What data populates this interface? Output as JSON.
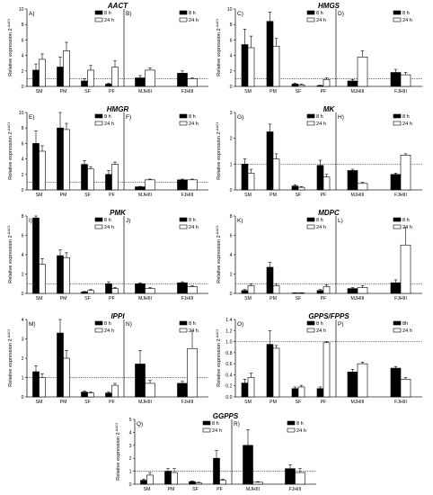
{
  "legend_labels": [
    "8 h",
    "24 h"
  ],
  "legend_labels_alt": [
    "8h",
    "24 h"
  ],
  "colors": {
    "h8": "#000000",
    "h24": "#ffffff",
    "axis": "#222222",
    "ref_line": "#333333"
  },
  "chart_data": [
    {
      "title": "AACT",
      "type": "bar",
      "ylabel": "Relative expression 2^-ΔΔCt",
      "ylim": [
        0,
        10
      ],
      "yticks": [
        0,
        2,
        4,
        6,
        8,
        10
      ],
      "reference_line": 1,
      "legend": "top-right",
      "left": {
        "label": "A)",
        "categories": [
          "SM",
          "PM",
          "SF",
          "PF"
        ],
        "values_8h": [
          2.1,
          2.5,
          0.7,
          0.3
        ],
        "err_8h": [
          0.8,
          1.3,
          0.3,
          0.1
        ],
        "values_24h": [
          3.5,
          4.6,
          2.1,
          2.5
        ],
        "err_24h": [
          0.7,
          1.1,
          0.6,
          0.8
        ]
      },
      "right": {
        "label": "B)",
        "categories": [
          "MJHIII",
          "FJHIII"
        ],
        "values_8h": [
          1.1,
          1.7
        ],
        "err_8h": [
          0.3,
          0.3
        ],
        "values_24h": [
          2.1,
          1.0
        ],
        "err_24h": [
          0.3,
          0.1
        ]
      }
    },
    {
      "title": "HMGS",
      "type": "bar",
      "ylabel": "Relative expression 2^-ΔΔCt",
      "ylim": [
        0,
        10
      ],
      "yticks": [
        0,
        2,
        4,
        6,
        8,
        10
      ],
      "reference_line": 1,
      "legend": "top-right",
      "left": {
        "label": "C)",
        "categories": [
          "SM",
          "PM",
          "SF",
          "PF"
        ],
        "values_8h": [
          5.4,
          8.4,
          0.3,
          0.1
        ],
        "err_8h": [
          2.0,
          1.2,
          0.1,
          0.05
        ],
        "values_24h": [
          5.0,
          5.2,
          0.2,
          0.9
        ],
        "err_24h": [
          1.5,
          1.0,
          0.1,
          0.2
        ]
      },
      "right": {
        "label": "D)",
        "categories": [
          "MJHIII",
          "FJHIII"
        ],
        "values_8h": [
          0.7,
          1.8
        ],
        "err_8h": [
          0.2,
          0.4
        ],
        "values_24h": [
          3.8,
          1.5
        ],
        "err_24h": [
          0.8,
          0.3
        ]
      }
    },
    {
      "title": "HMGR",
      "type": "bar",
      "ylabel": "Relative expression 2^-ΔΔCt",
      "ylim": [
        0,
        10
      ],
      "yticks": [
        0,
        2,
        4,
        6,
        8,
        10
      ],
      "reference_line": 1,
      "legend": "top-right",
      "left": {
        "label": "E)",
        "categories": [
          "SM",
          "PM",
          "SF",
          "PF"
        ],
        "values_8h": [
          6.0,
          8.0,
          3.3,
          2.0
        ],
        "err_8h": [
          1.6,
          2.1,
          0.5,
          0.5
        ],
        "values_24h": [
          5.0,
          7.8,
          2.7,
          3.3
        ],
        "err_24h": [
          0.7,
          0.8,
          0.3,
          0.3
        ]
      },
      "right": {
        "label": "F)",
        "categories": [
          "MJHIII",
          "FJHIII"
        ],
        "values_8h": [
          0.4,
          1.3
        ],
        "err_8h": [
          0.05,
          0.1
        ],
        "values_24h": [
          1.3,
          1.3
        ],
        "err_24h": [
          0.1,
          0.1
        ]
      }
    },
    {
      "title": "MK",
      "type": "bar",
      "ylabel": "Relative expression 2^-ΔΔCt",
      "ylim": [
        0,
        3
      ],
      "yticks": [
        0,
        1,
        2,
        3
      ],
      "reference_line": 1,
      "legend": "top-right",
      "left": {
        "label": "G)",
        "categories": [
          "SM",
          "PM",
          "SF",
          "PF"
        ],
        "values_8h": [
          1.0,
          2.25,
          0.15,
          0.95
        ],
        "err_8h": [
          0.2,
          0.3,
          0.05,
          0.2
        ],
        "values_24h": [
          0.65,
          1.2,
          0.1,
          0.5
        ],
        "err_24h": [
          0.15,
          0.2,
          0.03,
          0.1
        ]
      },
      "right": {
        "label": "H)",
        "categories": [
          "MJHIII",
          "FJHIII"
        ],
        "values_8h": [
          0.75,
          0.6
        ],
        "err_8h": [
          0.05,
          0.05
        ],
        "values_24h": [
          0.25,
          1.35
        ],
        "err_24h": [
          0.05,
          0.05
        ]
      }
    },
    {
      "title": "PMK",
      "type": "bar",
      "ylabel": "Relative expression 2^-ΔΔCt",
      "ylim": [
        0,
        8
      ],
      "yticks": [
        0,
        2,
        4,
        6,
        8
      ],
      "reference_line": 1,
      "legend": "top-right",
      "left": {
        "label": "I)",
        "categories": [
          "SM",
          "PM",
          "SF",
          "PF"
        ],
        "values_8h": [
          7.8,
          3.9,
          0.15,
          1.0
        ],
        "err_8h": [
          0.3,
          0.6,
          0.05,
          0.2
        ],
        "values_24h": [
          3.0,
          3.7,
          0.3,
          0.5
        ],
        "err_24h": [
          0.6,
          0.5,
          0.1,
          0.1
        ]
      },
      "right": {
        "label": "J)",
        "categories": [
          "MJHIII",
          "FJHIII"
        ],
        "values_8h": [
          1.0,
          1.1
        ],
        "err_8h": [
          0.1,
          0.1
        ],
        "values_24h": [
          0.5,
          0.7
        ],
        "err_24h": [
          0.1,
          0.1
        ]
      }
    },
    {
      "title": "MDPC",
      "type": "bar",
      "ylabel": "Relative expression 2^-ΔΔCt",
      "ylim": [
        0,
        8
      ],
      "yticks": [
        0,
        2,
        4,
        6,
        8
      ],
      "reference_line": 1,
      "legend": "top-right",
      "left": {
        "label": "K)",
        "categories": [
          "SM",
          "PM",
          "SF",
          "PF"
        ],
        "values_8h": [
          0.3,
          2.7,
          0.05,
          0.3
        ],
        "err_8h": [
          0.1,
          0.5,
          0.02,
          0.1
        ],
        "values_24h": [
          0.8,
          0.8,
          0.05,
          0.7
        ],
        "err_24h": [
          0.2,
          0.2,
          0.02,
          0.2
        ]
      },
      "right": {
        "label": "L)",
        "categories": [
          "MJHIII",
          "FJHIII"
        ],
        "values_8h": [
          0.5,
          1.1
        ],
        "err_8h": [
          0.1,
          0.3
        ],
        "values_24h": [
          0.6,
          5.0
        ],
        "err_24h": [
          0.2,
          1.8
        ]
      }
    },
    {
      "title": "IPPI",
      "type": "bar",
      "ylabel": "Relative expression 2^-ΔΔCt",
      "ylim": [
        0,
        4
      ],
      "yticks": [
        0,
        1,
        2,
        3,
        4
      ],
      "reference_line": 1,
      "legend": "top-right",
      "left": {
        "label": "M)",
        "categories": [
          "SM",
          "PM",
          "SF",
          "PF"
        ],
        "values_8h": [
          1.3,
          3.3,
          0.25,
          0.2
        ],
        "err_8h": [
          0.3,
          0.7,
          0.05,
          0.05
        ],
        "values_24h": [
          1.0,
          2.0,
          0.2,
          0.6
        ],
        "err_24h": [
          0.2,
          0.4,
          0.05,
          0.1
        ]
      },
      "right": {
        "label": "N)",
        "categories": [
          "MJHIII",
          "FJHIII"
        ],
        "values_8h": [
          1.7,
          0.7
        ],
        "err_8h": [
          0.7,
          0.1
        ],
        "values_24h": [
          0.7,
          2.5
        ],
        "err_24h": [
          0.15,
          0.9
        ]
      }
    },
    {
      "title": "GPPS/FPPS",
      "type": "bar",
      "ylabel": "Relative expression 2^-ΔΔCt",
      "ylim": [
        0,
        1.4
      ],
      "yticks": [
        0.0,
        0.2,
        0.4,
        0.6,
        0.8,
        1.0,
        1.2,
        1.4
      ],
      "reference_line": 1,
      "legend": "top-right",
      "left": {
        "label": "O)",
        "categories": [
          "SM",
          "PM",
          "SF",
          "PF"
        ],
        "values_8h": [
          0.25,
          0.95,
          0.15,
          0.15
        ],
        "err_8h": [
          0.07,
          0.25,
          0.03,
          0.03
        ],
        "values_24h": [
          0.35,
          0.88,
          0.18,
          0.98
        ],
        "err_24h": [
          0.08,
          0.05,
          0.03,
          0.02
        ]
      },
      "right": {
        "label": "P)",
        "categories": [
          "MJHIII",
          "FJHIII"
        ],
        "values_8h": [
          0.45,
          0.52
        ],
        "err_8h": [
          0.05,
          0.03
        ],
        "values_24h": [
          0.6,
          0.32
        ],
        "err_24h": [
          0.03,
          0.03
        ]
      }
    },
    {
      "title": "GGPPS",
      "type": "bar",
      "ylabel": "Relative expression 2^-ΔΔCt",
      "ylim": [
        0,
        5
      ],
      "yticks": [
        0,
        1,
        2,
        3,
        4,
        5
      ],
      "reference_line": 1,
      "legend": "top-right",
      "left": {
        "label": "Q)",
        "categories": [
          "SM",
          "PM",
          "SF",
          "PF"
        ],
        "values_8h": [
          0.3,
          1.0,
          0.2,
          2.0
        ],
        "err_8h": [
          0.1,
          0.2,
          0.05,
          0.6
        ],
        "values_24h": [
          0.7,
          0.9,
          0.1,
          0.3
        ],
        "err_24h": [
          0.2,
          0.3,
          0.05,
          0.1
        ]
      },
      "right": {
        "label": "R)",
        "categories": [
          "MJHIII",
          "FJHIII"
        ],
        "values_8h": [
          3.0,
          1.2
        ],
        "err_8h": [
          1.2,
          0.3
        ],
        "values_24h": [
          0.15,
          0.9
        ],
        "err_24h": [
          0.05,
          0.3
        ]
      }
    }
  ]
}
